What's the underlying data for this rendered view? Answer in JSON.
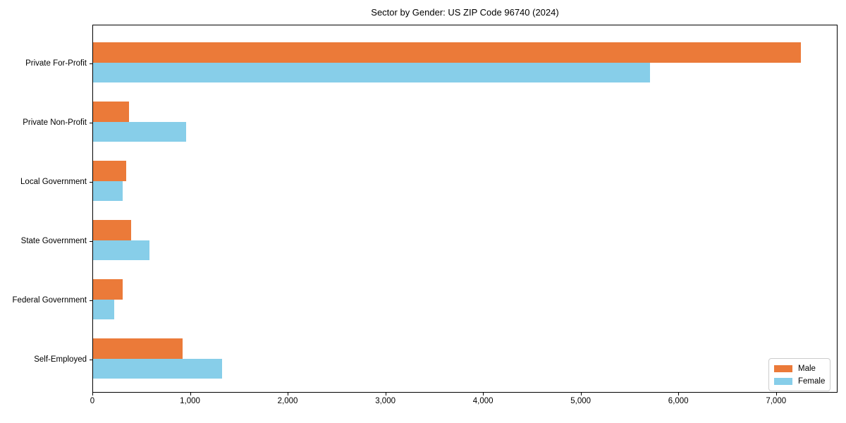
{
  "title": "Sector by Gender: US ZIP Code 96740 (2024)",
  "colors": {
    "male": "#EB7A39",
    "female": "#87CEE9",
    "axis": "#000000",
    "legend_border": "#cccccc",
    "background": "#ffffff"
  },
  "chart_data": {
    "type": "bar",
    "orientation": "horizontal",
    "title": "Sector by Gender: US ZIP Code 96740 (2024)",
    "xlabel": "",
    "ylabel": "",
    "categories": [
      "Private For-Profit",
      "Private Non-Profit",
      "Local Government",
      "State Government",
      "Federal Government",
      "Self-Employed"
    ],
    "series": [
      {
        "name": "Male",
        "color": "#EB7A39",
        "values": [
          7250,
          370,
          340,
          390,
          300,
          920
        ]
      },
      {
        "name": "Female",
        "color": "#87CEE9",
        "values": [
          5700,
          950,
          300,
          580,
          220,
          1320
        ]
      }
    ],
    "xlim": [
      0,
      7630
    ],
    "xticks": [
      0,
      1000,
      2000,
      3000,
      4000,
      5000,
      6000,
      7000
    ],
    "xtick_labels": [
      "0",
      "1,000",
      "2,000",
      "3,000",
      "4,000",
      "5,000",
      "6,000",
      "7,000"
    ],
    "grid": false,
    "legend_position": "lower-right"
  }
}
